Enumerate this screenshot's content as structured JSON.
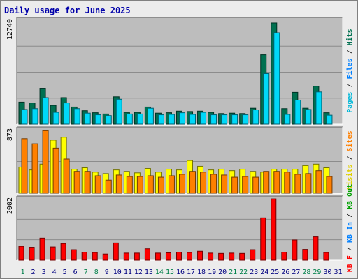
{
  "colors": {
    "hits": "#007050",
    "files": "#00d8f8",
    "pages": "#00b8d8",
    "visits": "#ffff00",
    "sites": "#ff8000",
    "kbin": "#ff8000",
    "kbout": "#ffa000",
    "kbf": "#ff0000",
    "panel_bg": "#bdbdbd",
    "page_bg": "#ececec",
    "weekend_label": "#00804a",
    "weekday_label": "#000080"
  },
  "chart_data": {
    "type": "bar",
    "title": "Daily usage for June 2025",
    "days": [
      1,
      2,
      3,
      4,
      5,
      6,
      7,
      8,
      9,
      10,
      11,
      12,
      13,
      14,
      15,
      16,
      17,
      18,
      19,
      20,
      21,
      22,
      23,
      24,
      25,
      26,
      27,
      28,
      29,
      30,
      31
    ],
    "day_labels": [
      "1",
      "2",
      "3",
      "4",
      "5",
      "6",
      "7",
      "8",
      "9",
      "10",
      "11",
      "12",
      "13",
      "14",
      "15",
      "16",
      "17",
      "18",
      "19",
      "20",
      "21",
      "22",
      "23",
      "24",
      "25",
      "26",
      "27",
      "28",
      "29",
      "30",
      "31"
    ],
    "weekend_days": [
      1,
      7,
      8,
      14,
      15,
      21,
      22,
      28,
      29
    ],
    "panels": [
      {
        "id": "hits_panel",
        "ymax_label": "12740",
        "ymax": 12740,
        "side_label": [
          "Pages",
          " / ",
          "Files",
          " / ",
          "Hits"
        ],
        "side_colors": [
          "#00b8d8",
          "#000000",
          "#0080ff",
          "#000000",
          "#007050"
        ],
        "series": [
          {
            "name": "Hits",
            "key": "hits",
            "values": [
              2700,
              2600,
              4400,
              2300,
              3250,
              2100,
              1650,
              1400,
              1250,
              3350,
              1450,
              1450,
              2100,
              1350,
              1400,
              1600,
              1550,
              1600,
              1450,
              1300,
              1350,
              1300,
              1950,
              8500,
              12400,
              1900,
              3900,
              1950,
              4650,
              1400
            ]
          },
          {
            "name": "Files",
            "key": "files",
            "values": [
              1800,
              1900,
              3250,
              1450,
              2600,
              1900,
              1350,
              1150,
              1050,
              3050,
              1250,
              1250,
              1950,
              1150,
              1200,
              1400,
              1200,
              1450,
              1150,
              1150,
              1150,
              1150,
              1750,
              6200,
              11200,
              1200,
              2950,
              1800,
              3950,
              1100
            ]
          }
        ]
      },
      {
        "id": "visits_panel",
        "ymax_label": "873",
        "ymax": 873,
        "side_label": [
          "Visits",
          " / ",
          "Sites"
        ],
        "side_colors": [
          "#e0d000",
          "#000000",
          "#ff8000"
        ],
        "series": [
          {
            "name": "Visits",
            "key": "visits",
            "values": [
              360,
              320,
              400,
              730,
              770,
              330,
              350,
              290,
              270,
              320,
              300,
              280,
              340,
              290,
              330,
              320,
              450,
              370,
              320,
              330,
              310,
              330,
              300,
              290,
              330,
              330,
              330,
              380,
              400,
              350
            ]
          },
          {
            "name": "Sites",
            "key": "sites",
            "values": [
              750,
              680,
              860,
              620,
              470,
              300,
              300,
              240,
              180,
              250,
              230,
              230,
              240,
              220,
              240,
              260,
              300,
              290,
              260,
              250,
              220,
              230,
              220,
              300,
              300,
              290,
              260,
              270,
              310,
              230
            ]
          }
        ]
      },
      {
        "id": "kbytes_panel",
        "ymax_label": "2002",
        "ymax": 2002,
        "side_label": [
          "KB F",
          " / ",
          "KB In",
          " / ",
          "KB Out"
        ],
        "side_colors": [
          "#ff0000",
          "#000000",
          "#0080ff",
          "#000000",
          "#00a000"
        ],
        "series": [
          {
            "name": "KB F",
            "key": "kbf",
            "values": [
              450,
              420,
              720,
              430,
              540,
              340,
              260,
              250,
              200,
              560,
              230,
              230,
              370,
              230,
              240,
              260,
              250,
              290,
              230,
              220,
              230,
              220,
              340,
              1380,
              2000,
              260,
              660,
              350,
              760,
              250
            ]
          }
        ]
      }
    ]
  }
}
